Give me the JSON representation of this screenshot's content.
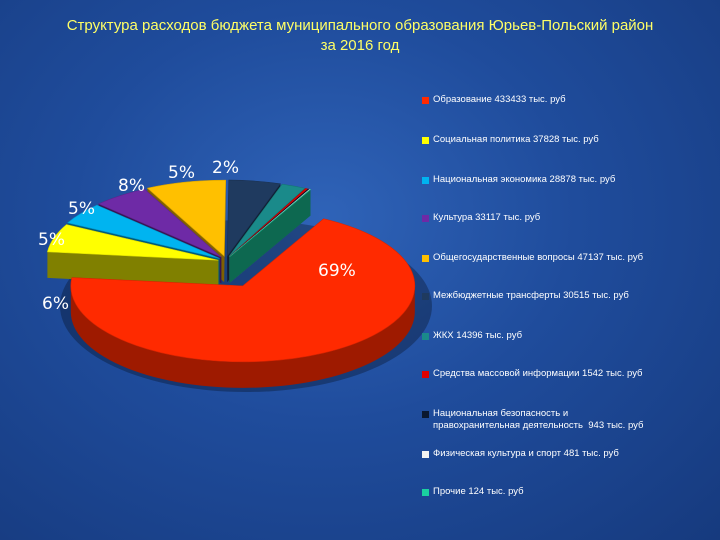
{
  "title_line1": "Структура расходов бюджета муниципального образования Юрьев-Польский район",
  "title_line2": "за 2016 год",
  "chart_data": {
    "type": "pie",
    "title": "Структура расходов бюджета муниципального образования Юрьев-Польский район за 2016 год",
    "unit": "тыс. руб",
    "legend_position": "right",
    "slices": [
      {
        "label": "Образование 433433 тыс. руб",
        "value": 433433,
        "color": "#ff2a00",
        "pct_label": "69%"
      },
      {
        "label": "Социальная политика 37828 тыс. руб",
        "value": 37828,
        "color": "#ffff00",
        "pct_label": "6%"
      },
      {
        "label": "Национальная экономика 28878 тыс. руб",
        "value": 28878,
        "color": "#00b4f0",
        "pct_label": "5%"
      },
      {
        "label": "Культура 33117 тыс. руб",
        "value": 33117,
        "color": "#6e2aa6",
        "pct_label": "5%"
      },
      {
        "label": "Общегосударственные вопросы 47137 тыс. руб",
        "value": 47137,
        "color": "#ffc000",
        "pct_label": "8%"
      },
      {
        "label": "Межбюджетные трансферты 30515 тыс. руб",
        "value": 30515,
        "color": "#1f3a5f",
        "pct_label": "5%"
      },
      {
        "label": "ЖКХ 14396 тыс. руб",
        "value": 14396,
        "color": "#1a8a8a",
        "pct_label": "2%"
      },
      {
        "label": "Средства массовой информации 1542 тыс. руб",
        "value": 1542,
        "color": "#e00000",
        "pct_label": ""
      },
      {
        "label": "Национальная безопасность и\nправохранительная деятельность  943 тыс. руб",
        "value": 943,
        "color": "#0a1830",
        "pct_label": ""
      },
      {
        "label": "Физическая культура и спорт 481 тыс. руб",
        "value": 481,
        "color": "#f2f2f2",
        "pct_label": ""
      },
      {
        "label": "Прочие 124 тыс. руб",
        "value": 124,
        "color": "#1ad0a0",
        "pct_label": ""
      }
    ]
  }
}
